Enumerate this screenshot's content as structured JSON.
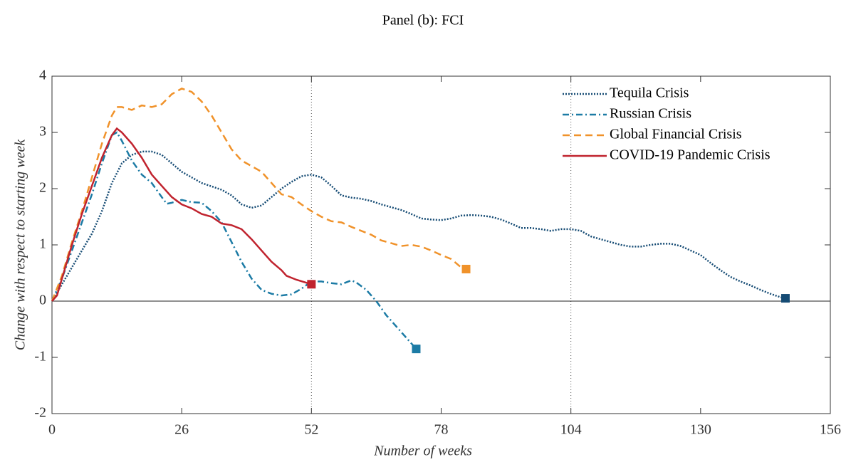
{
  "chart_data": {
    "type": "line",
    "title": "Panel (b): FCI",
    "xlabel": "Number of weeks",
    "ylabel": "Change with respect to starting week",
    "xlim": [
      0,
      156
    ],
    "xticks": [
      0,
      26,
      52,
      78,
      104,
      130,
      156
    ],
    "ylim": [
      -2,
      4
    ],
    "yticks": [
      -2,
      -1,
      0,
      1,
      2,
      3,
      4
    ],
    "vlines": [
      52,
      104
    ],
    "legend": "upper right",
    "series": [
      {
        "name": "Tequila Crisis",
        "color": "#154b74",
        "style": "dotted",
        "x": [
          0,
          2,
          4,
          6,
          8,
          10,
          12,
          14,
          16,
          18,
          20,
          22,
          24,
          26,
          28,
          30,
          32,
          34,
          36,
          38,
          40,
          42,
          44,
          46,
          48,
          50,
          52,
          54,
          56,
          58,
          60,
          62,
          64,
          66,
          68,
          70,
          72,
          74,
          76,
          78,
          80,
          82,
          84,
          86,
          88,
          90,
          92,
          94,
          96,
          98,
          100,
          102,
          104,
          106,
          108,
          110,
          112,
          114,
          116,
          118,
          120,
          122,
          124,
          126,
          128,
          130,
          132,
          134,
          136,
          138,
          140,
          142,
          144,
          146,
          147
        ],
        "values": [
          0,
          0.3,
          0.6,
          0.9,
          1.2,
          1.6,
          2.1,
          2.45,
          2.6,
          2.66,
          2.66,
          2.6,
          2.45,
          2.3,
          2.2,
          2.1,
          2.04,
          1.98,
          1.88,
          1.72,
          1.66,
          1.7,
          1.85,
          2.0,
          2.12,
          2.22,
          2.25,
          2.2,
          2.05,
          1.88,
          1.84,
          1.82,
          1.78,
          1.72,
          1.67,
          1.62,
          1.55,
          1.47,
          1.45,
          1.44,
          1.47,
          1.52,
          1.53,
          1.52,
          1.5,
          1.45,
          1.38,
          1.3,
          1.3,
          1.28,
          1.25,
          1.28,
          1.28,
          1.25,
          1.15,
          1.1,
          1.05,
          1.0,
          0.97,
          0.97,
          1.0,
          1.02,
          1.02,
          0.98,
          0.9,
          0.82,
          0.68,
          0.55,
          0.43,
          0.35,
          0.28,
          0.2,
          0.13,
          0.07,
          0.05
        ]
      },
      {
        "name": "Russian Crisis",
        "color": "#1c7ba5",
        "style": "dashdot",
        "x": [
          0,
          2,
          4,
          6,
          8,
          10,
          12,
          13,
          14,
          16,
          18,
          20,
          22,
          23,
          24,
          26,
          28,
          30,
          32,
          34,
          36,
          38,
          40,
          42,
          44,
          46,
          48,
          50,
          52,
          54,
          56,
          58,
          60,
          61,
          63,
          65,
          67,
          69,
          71,
          73
        ],
        "values": [
          0,
          0.4,
          0.9,
          1.4,
          1.9,
          2.45,
          2.95,
          3.0,
          2.85,
          2.5,
          2.25,
          2.1,
          1.85,
          1.73,
          1.75,
          1.8,
          1.76,
          1.75,
          1.6,
          1.4,
          1.05,
          0.7,
          0.4,
          0.2,
          0.13,
          0.1,
          0.12,
          0.22,
          0.35,
          0.35,
          0.32,
          0.3,
          0.37,
          0.33,
          0.2,
          0.0,
          -0.25,
          -0.45,
          -0.65,
          -0.85
        ]
      },
      {
        "name": "Global Financial Crisis",
        "color": "#f0922a",
        "style": "dashed",
        "x": [
          0,
          2,
          4,
          6,
          8,
          10,
          12,
          13,
          14,
          16,
          18,
          20,
          22,
          24,
          26,
          28,
          30,
          32,
          34,
          36,
          38,
          40,
          42,
          44,
          46,
          48,
          50,
          52,
          54,
          56,
          58,
          60,
          62,
          64,
          66,
          68,
          70,
          72,
          74,
          76,
          78,
          80,
          82,
          83
        ],
        "values": [
          0,
          0.45,
          1.05,
          1.6,
          2.2,
          2.8,
          3.3,
          3.45,
          3.45,
          3.4,
          3.48,
          3.45,
          3.5,
          3.68,
          3.78,
          3.72,
          3.55,
          3.3,
          3.0,
          2.7,
          2.5,
          2.4,
          2.3,
          2.1,
          1.9,
          1.85,
          1.72,
          1.6,
          1.5,
          1.42,
          1.4,
          1.32,
          1.25,
          1.18,
          1.08,
          1.03,
          0.98,
          1.0,
          0.97,
          0.9,
          0.82,
          0.75,
          0.6,
          0.57
        ]
      },
      {
        "name": "COVID-19 Pandemic Crisis",
        "color": "#c0232e",
        "style": "solid",
        "x": [
          0,
          1,
          2,
          4,
          6,
          8,
          10,
          12,
          13,
          14,
          16,
          18,
          20,
          22,
          24,
          26,
          28,
          30,
          32,
          34,
          36,
          38,
          40,
          42,
          44,
          46,
          47,
          49,
          52
        ],
        "values": [
          0,
          0.1,
          0.4,
          1.0,
          1.55,
          2.05,
          2.55,
          2.95,
          3.07,
          3.0,
          2.8,
          2.55,
          2.25,
          2.05,
          1.85,
          1.72,
          1.65,
          1.55,
          1.5,
          1.38,
          1.35,
          1.28,
          1.1,
          0.9,
          0.7,
          0.55,
          0.45,
          0.38,
          0.3
        ]
      }
    ]
  }
}
